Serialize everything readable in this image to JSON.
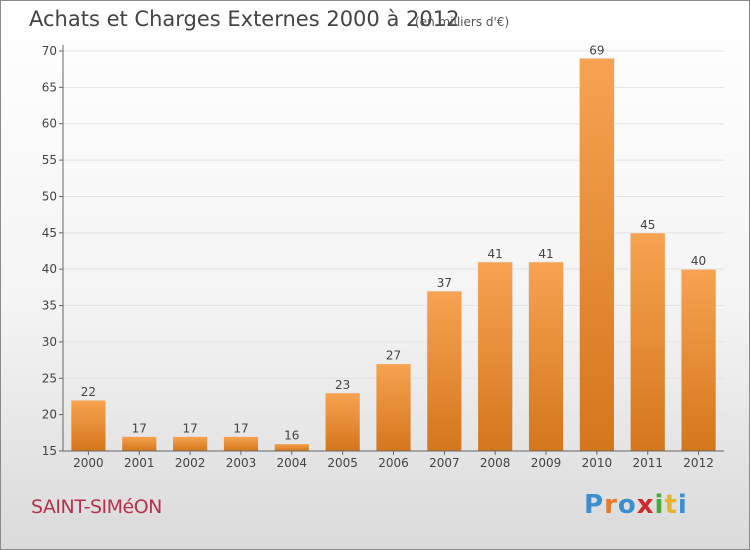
{
  "title": "Achats et Charges Externes 2000 à 2012",
  "subtitle": "(en milliers d'€)",
  "commune": "SAINT-SIMéON",
  "logo": {
    "letters": [
      "P",
      "r",
      "o",
      "x",
      "i",
      "t",
      "i"
    ],
    "colors": [
      "#3a8fd0",
      "#e8792a",
      "#3a8fd0",
      "#d02a2a",
      "#4aa83a",
      "#e8b52a",
      "#3a8fd0"
    ]
  },
  "colors": {
    "bar_light": "#f7a351",
    "bar_dark": "#d4761c",
    "grid": "#e2e2e2",
    "axis": "#666666",
    "text": "#444444"
  },
  "chart_data": {
    "type": "bar",
    "categories": [
      "2000",
      "2001",
      "2002",
      "2003",
      "2004",
      "2005",
      "2006",
      "2007",
      "2008",
      "2009",
      "2010",
      "2011",
      "2012"
    ],
    "values": [
      22,
      17,
      17,
      17,
      16,
      23,
      27,
      37,
      41,
      41,
      69,
      45,
      40
    ],
    "data_labels": [
      "22",
      "17",
      "17",
      "17",
      "16",
      "23",
      "27",
      "37",
      "41",
      "41",
      "69",
      "45",
      "40"
    ],
    "ylim": [
      15,
      70
    ],
    "yticks": [
      15,
      20,
      25,
      30,
      35,
      40,
      45,
      50,
      55,
      60,
      65,
      70
    ],
    "grid": true,
    "title": "Achats et Charges Externes 2000 à 2012",
    "xlabel": "",
    "ylabel": ""
  }
}
